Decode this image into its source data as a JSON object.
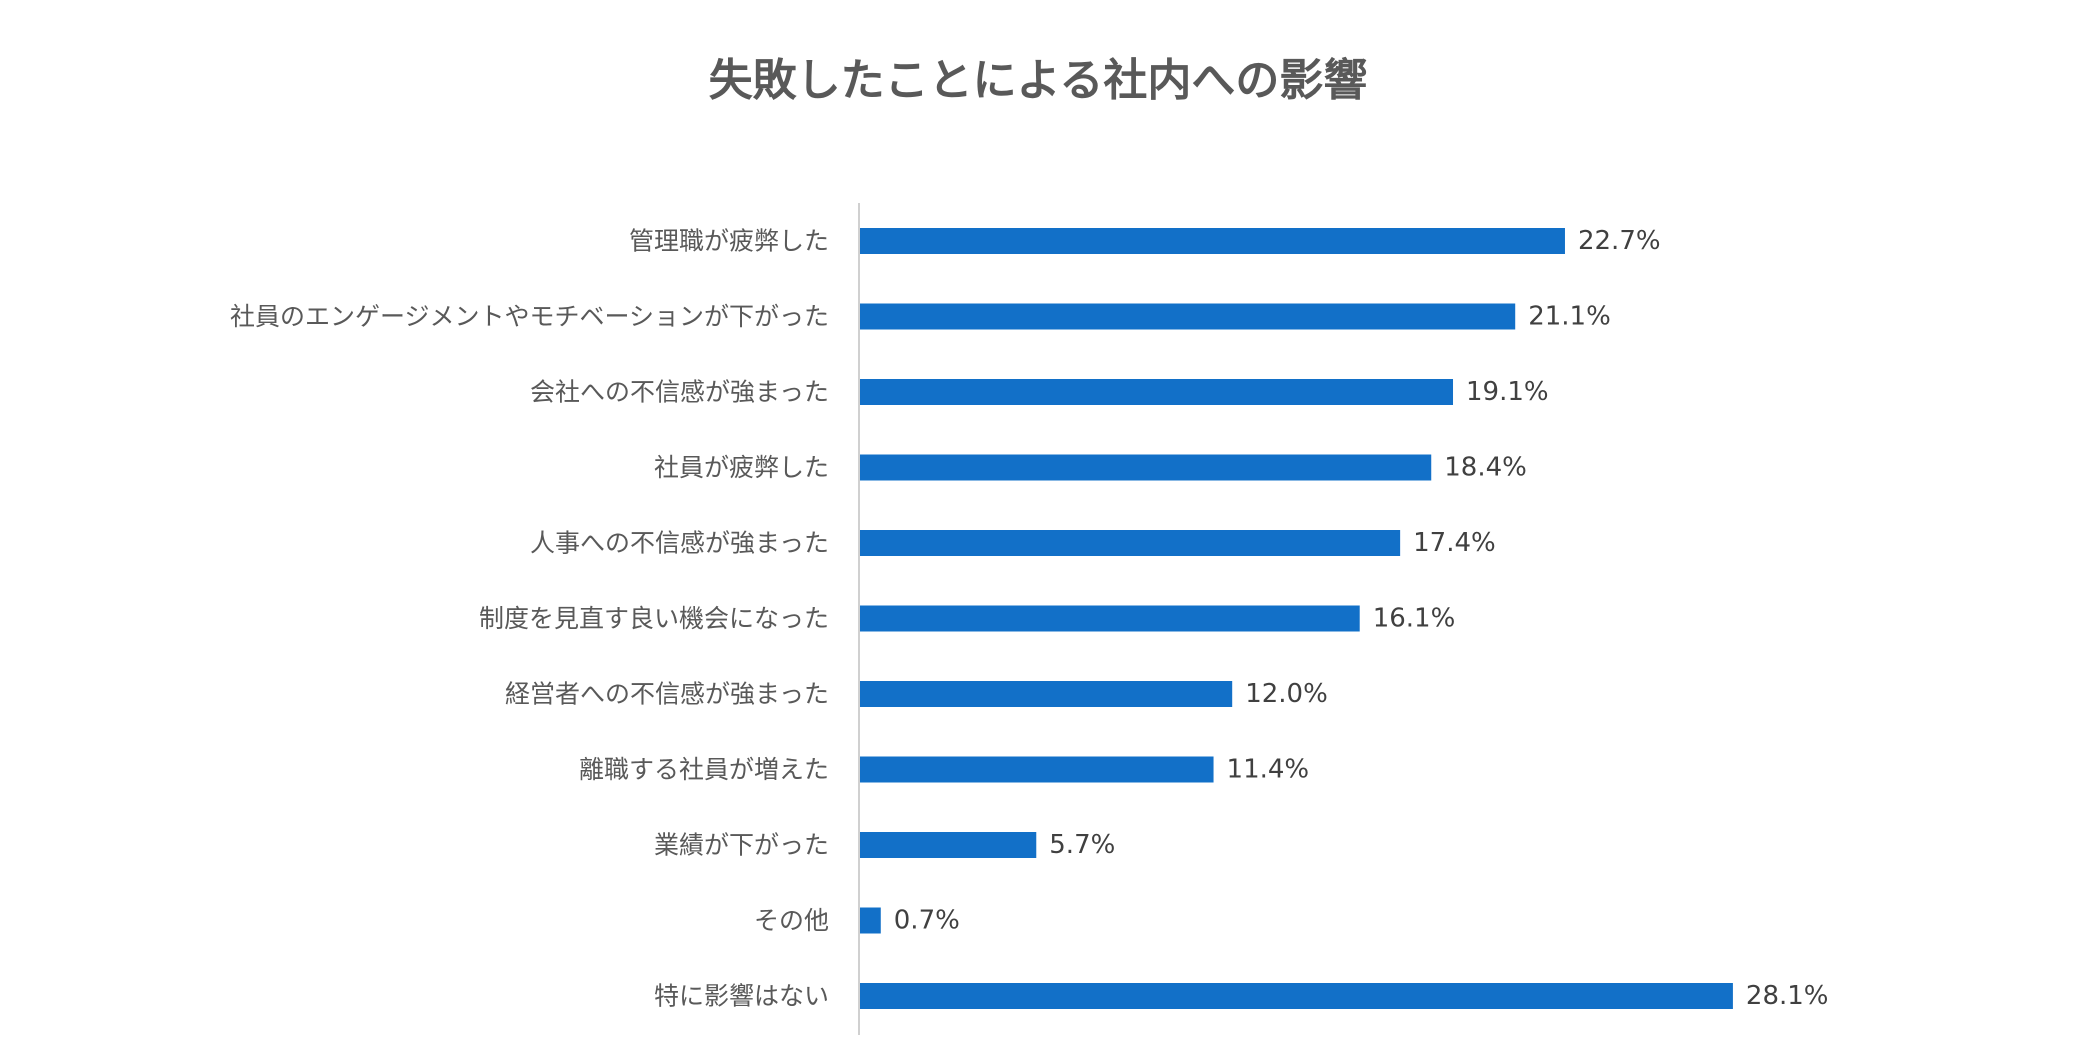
{
  "chart_data": {
    "type": "bar",
    "orientation": "horizontal",
    "title": "失敗したことによる社内への影響",
    "xlabel": "",
    "ylabel": "",
    "xlim": [
      0,
      30
    ],
    "grid": false,
    "legend": "none",
    "bar_color": "#1270c8",
    "unit": "%",
    "categories": [
      "管理職が疲弊した",
      "社員のエンゲージメントやモチベーションが下がった",
      "会社への不信感が強まった",
      "社員が疲弊した",
      "人事への不信感が強まった",
      "制度を見直す良い機会になった",
      "経営者への不信感が強まった",
      "離職する社員が増えた",
      "業績が下がった",
      "その他",
      "特に影響はない"
    ],
    "values": [
      22.7,
      21.1,
      19.1,
      18.4,
      17.4,
      16.1,
      12.0,
      11.4,
      5.7,
      0.7,
      28.1
    ],
    "data_labels": [
      "22.7%",
      "21.1%",
      "19.1%",
      "18.4%",
      "17.4%",
      "16.1%",
      "12.0%",
      "11.4%",
      "5.7%",
      "0.7%",
      "28.1%"
    ]
  }
}
